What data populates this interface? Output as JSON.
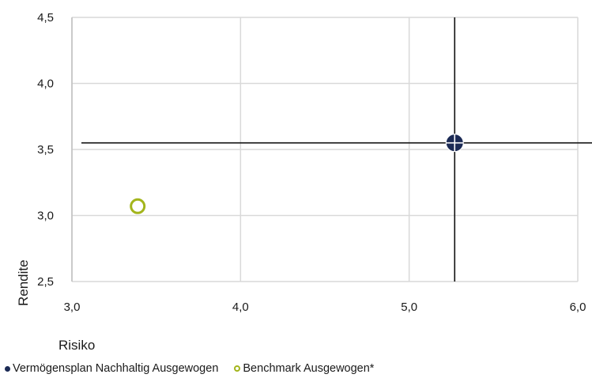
{
  "chart_data": {
    "type": "scatter",
    "xlabel": "Risiko",
    "ylabel": "Rendite",
    "xlim": [
      3.0,
      6.0
    ],
    "ylim": [
      2.5,
      4.5
    ],
    "x_ticks": [
      "3,0",
      "4,0",
      "5,0",
      "6,0"
    ],
    "y_ticks": [
      "2,5",
      "3,0",
      "3,5",
      "4,0",
      "4,5"
    ],
    "grid": true,
    "legend_position": "bottom",
    "series": [
      {
        "name": "Vermögensplan Nachhaltig Ausgewogen",
        "x": [
          5.27
        ],
        "y": [
          3.55
        ],
        "marker": "filled-circle-with-crosshair",
        "color": "#1b2a55"
      },
      {
        "name": "Benchmark Ausgewogen*",
        "x": [
          3.39
        ],
        "y": [
          3.07
        ],
        "marker": "hollow-circle",
        "color": "#a3b51c"
      }
    ]
  }
}
